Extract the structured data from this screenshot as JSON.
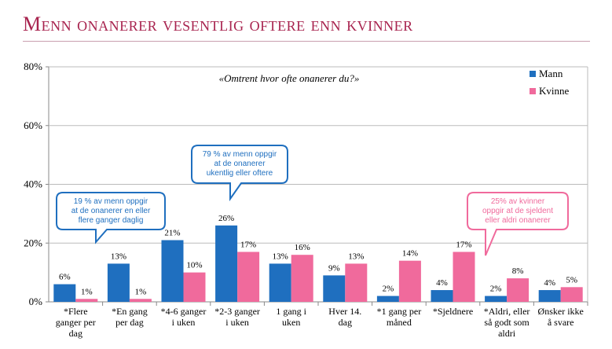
{
  "title": "Menn onanerer vesentlig oftere enn kvinner",
  "chart_data": {
    "type": "bar",
    "subtitle": "«Omtrent hvor ofte onanerer du?»",
    "ylim": [
      0,
      80
    ],
    "yticks": [
      "0%",
      "20%",
      "40%",
      "60%",
      "80%"
    ],
    "legend_position": "top-right",
    "categories": [
      [
        "*Flere",
        "ganger per",
        "dag"
      ],
      [
        "*En gang",
        "per dag"
      ],
      [
        "*4-6 ganger",
        "i uken"
      ],
      [
        "*2-3 ganger",
        "i uken"
      ],
      [
        "1 gang i",
        "uken"
      ],
      [
        "Hver 14.",
        "dag"
      ],
      [
        "*1 gang per",
        "måned"
      ],
      [
        "*Sjeldnere"
      ],
      [
        "*Aldri, eller",
        "så godt som",
        "aldri"
      ],
      [
        "Ønsker ikke",
        "å svare"
      ]
    ],
    "series": [
      {
        "name": "Mann",
        "color": "#1f6fbf",
        "values": [
          6,
          13,
          21,
          26,
          13,
          9,
          2,
          4,
          2,
          4
        ],
        "labels": [
          "6%",
          "13%",
          "21%",
          "26%",
          "13%",
          "9%",
          "2%",
          "4%",
          "2%",
          "4%"
        ]
      },
      {
        "name": "Kvinne",
        "color": "#f06a9c",
        "values": [
          1,
          1,
          10,
          17,
          16,
          13,
          14,
          17,
          8,
          5
        ],
        "labels": [
          "1%",
          "1%",
          "10%",
          "17%",
          "16%",
          "13%",
          "14%",
          "17%",
          "8%",
          "5%"
        ]
      }
    ],
    "callouts": [
      {
        "lines": [
          "19 % av menn oppgir",
          "at de onanerer en eller",
          "flere ganger daglig"
        ],
        "color": "#1f6fbf"
      },
      {
        "lines": [
          "79 % av menn oppgir",
          "at de onanerer",
          "ukentlig eller oftere"
        ],
        "color": "#1f6fbf"
      },
      {
        "lines": [
          "25% av kvinner",
          "oppgir at de sjeldent",
          "eller aldri onanerer"
        ],
        "color": "#f06a9c"
      }
    ]
  }
}
